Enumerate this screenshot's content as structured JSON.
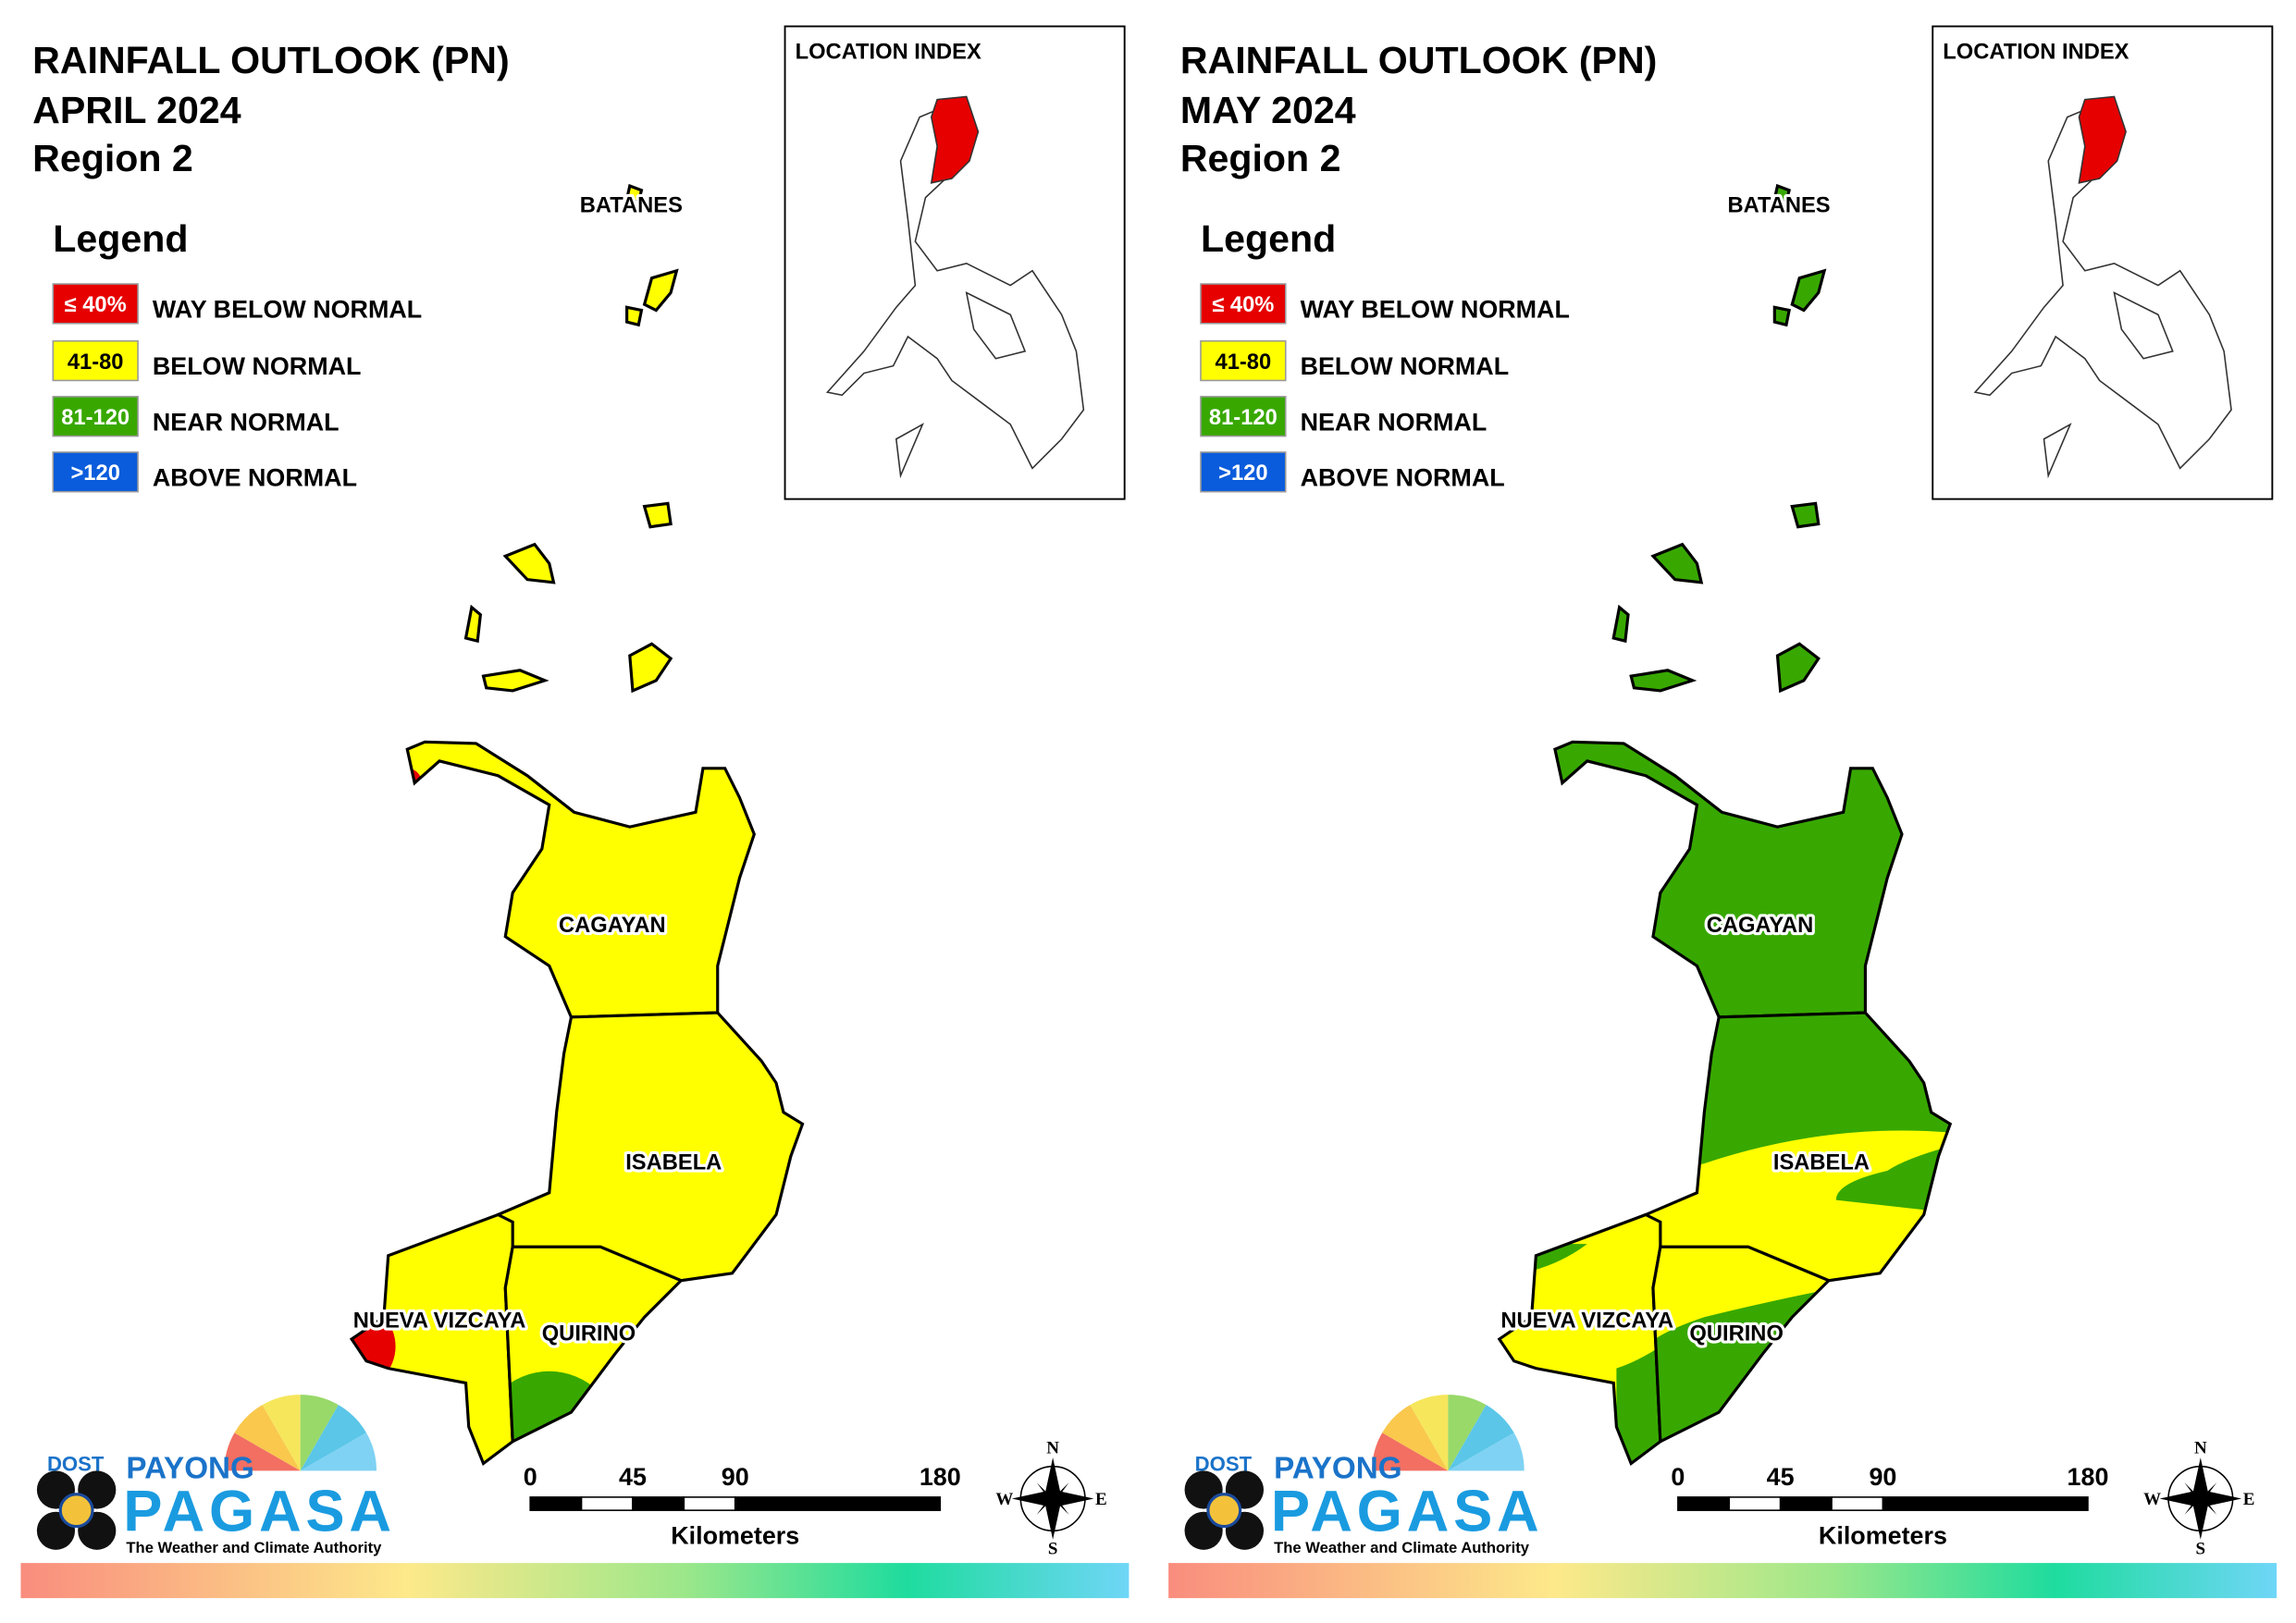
{
  "panels": [
    {
      "title": "RAINFALL OUTLOOK (PN)",
      "period": "APRIL 2024",
      "region": "Region 2",
      "legend": {
        "title": "Legend",
        "items": [
          {
            "swatch": "≤ 40%",
            "label": "WAY BELOW NORMAL",
            "color": "#e60000"
          },
          {
            "swatch": "41-80",
            "label": "BELOW NORMAL",
            "color": "#ffff00"
          },
          {
            "swatch": "81-120",
            "label": "NEAR NORMAL",
            "color": "#38a800"
          },
          {
            "swatch": ">120",
            "label": "ABOVE NORMAL",
            "color": "#0a5cdc"
          }
        ]
      },
      "location_index": "LOCATION INDEX",
      "places": [
        "BATANES",
        "CAGAYAN",
        "ISABELA",
        "NUEVA VIZCAYA",
        "QUIRINO"
      ],
      "scale": {
        "ticks": [
          0,
          45,
          90,
          180
        ],
        "unit": "Kilometers"
      },
      "compass": [
        "N",
        "E",
        "S",
        "W"
      ],
      "logo": {
        "agency": "DOST",
        "name_top": "PAYONG",
        "name": "PAGASA",
        "tagline": "The Weather and Climate Authority"
      }
    },
    {
      "title": "RAINFALL OUTLOOK (PN)",
      "period": "MAY 2024",
      "region": "Region 2",
      "legend": {
        "title": "Legend",
        "items": [
          {
            "swatch": "≤ 40%",
            "label": "WAY BELOW NORMAL",
            "color": "#e60000"
          },
          {
            "swatch": "41-80",
            "label": "BELOW NORMAL",
            "color": "#ffff00"
          },
          {
            "swatch": "81-120",
            "label": "NEAR NORMAL",
            "color": "#38a800"
          },
          {
            "swatch": ">120",
            "label": "ABOVE NORMAL",
            "color": "#0a5cdc"
          }
        ]
      },
      "location_index": "LOCATION INDEX",
      "places": [
        "BATANES",
        "CAGAYAN",
        "ISABELA",
        "NUEVA VIZCAYA",
        "QUIRINO"
      ],
      "scale": {
        "ticks": [
          0,
          45,
          90,
          180
        ],
        "unit": "Kilometers"
      },
      "compass": [
        "N",
        "E",
        "S",
        "W"
      ],
      "logo": {
        "agency": "DOST",
        "name_top": "PAYONG",
        "name": "PAGASA",
        "tagline": "The Weather and Climate Authority"
      }
    }
  ]
}
